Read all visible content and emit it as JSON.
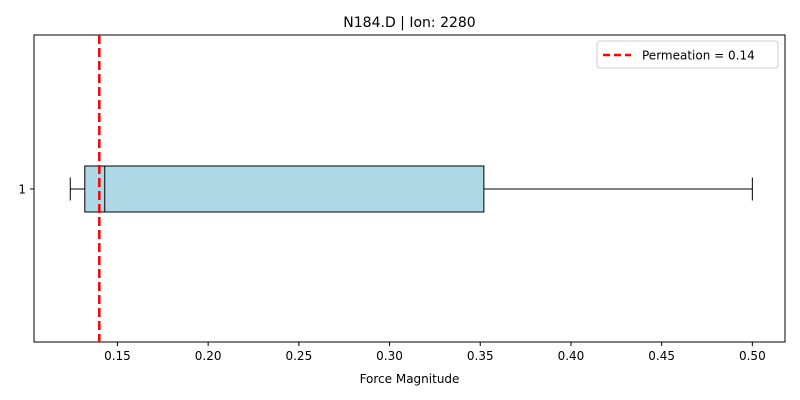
{
  "chart_data": {
    "type": "box",
    "orientation": "horizontal",
    "title": "N184.D | Ion: 2280",
    "xlabel": "Force Magnitude",
    "ylabel": "",
    "xlim": [
      0.104,
      0.518
    ],
    "x_ticks": [
      0.15,
      0.2,
      0.25,
      0.3,
      0.35,
      0.4,
      0.45,
      0.5
    ],
    "x_tick_labels": [
      "0.15",
      "0.20",
      "0.25",
      "0.30",
      "0.35",
      "0.40",
      "0.45",
      "0.50"
    ],
    "y_tick_labels": [
      "1"
    ],
    "grid": false,
    "legend_position": "top-right",
    "boxes": [
      {
        "category": "1",
        "whisker_low": 0.124,
        "q1": 0.132,
        "median": 0.143,
        "q3": 0.352,
        "whisker_high": 0.5,
        "fill_color": "#add8e6",
        "edge_color": "#000000"
      }
    ],
    "reference_line": {
      "label": "Permeation = 0.14",
      "x": 0.14,
      "color": "#ff0000",
      "style": "dashed"
    }
  }
}
